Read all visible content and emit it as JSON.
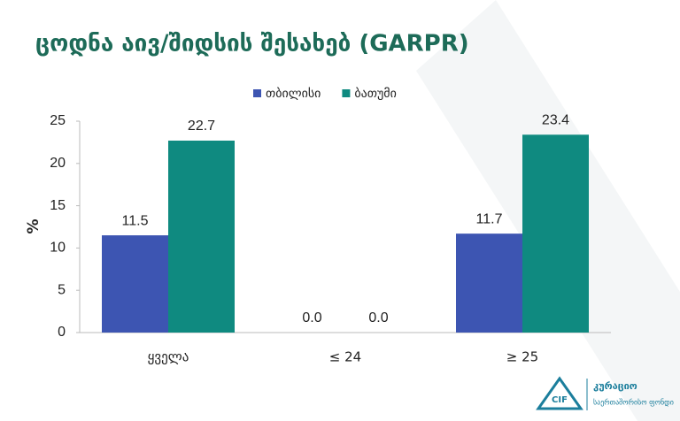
{
  "chart_data": {
    "type": "bar",
    "title": "ცოდნა აივ/შიდსის შესახებ (GARPR)",
    "y_label": "%",
    "categories": [
      "ყველა",
      "≤ 24",
      "≥ 25"
    ],
    "series": [
      {
        "name": "თბილისი",
        "color": "#3d55b2",
        "values": [
          11.5,
          0,
          11.7
        ],
        "value_labels": [
          "11.5",
          "0.0",
          "11.7"
        ]
      },
      {
        "name": "ბათუმი",
        "color": "#0f8a80",
        "values": [
          22.7,
          0,
          23.4
        ],
        "value_labels": [
          "22.7",
          "0.0",
          "23.4"
        ]
      }
    ],
    "ylim": [
      0,
      25
    ],
    "yticks": [
      0,
      5,
      10,
      15,
      20,
      25
    ],
    "grid": false,
    "legend": "top"
  },
  "logo": {
    "mark": "CIF",
    "name": "კურაციო",
    "subtitle": "საერთაშორისო ფონდი"
  }
}
